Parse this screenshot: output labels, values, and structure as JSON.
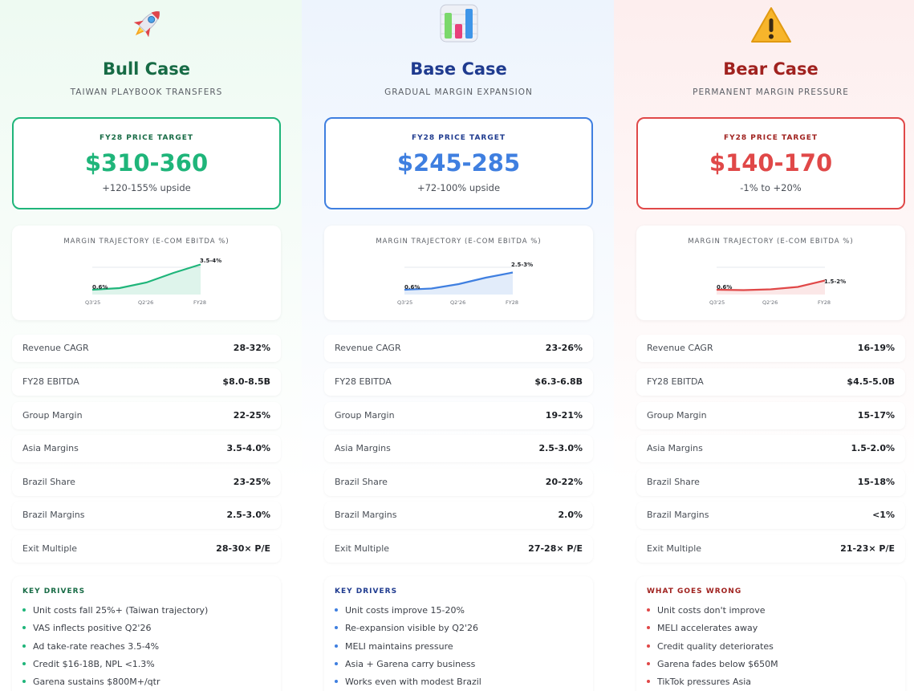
{
  "scenarios": [
    {
      "key": "bull",
      "icon": "rocket-icon",
      "title": "Bull Case",
      "subtitle": "TAIWAN PLAYBOOK TRANSFERS",
      "price_target_label": "FY28 PRICE TARGET",
      "price_target": "$310-360",
      "upside": "+120-155% upside",
      "chart_title": "MARGIN TRAJECTORY (E-COM EBITDA %)",
      "chart_start_label": "0.6%",
      "chart_end_label": "3.5-4%",
      "chart_x_labels": [
        "Q3'25",
        "Q2'26",
        "FY28"
      ],
      "metrics": [
        {
          "label": "Revenue CAGR",
          "value": "28-32%"
        },
        {
          "label": "FY28 EBITDA",
          "value": "$8.0-8.5B"
        },
        {
          "label": "Group Margin",
          "value": "22-25%"
        },
        {
          "label": "Asia Margins",
          "value": "3.5-4.0%"
        },
        {
          "label": "Brazil Share",
          "value": "23-25%"
        },
        {
          "label": "Brazil Margins",
          "value": "2.5-3.0%"
        },
        {
          "label": "Exit Multiple",
          "value": "28-30× P/E"
        }
      ],
      "drivers_title": "KEY DRIVERS",
      "drivers": [
        "Unit costs fall 25%+ (Taiwan trajectory)",
        "VAS inflects positive Q2'26",
        "Ad take-rate reaches 3.5-4%",
        "Credit $16-18B, NPL <1.3%",
        "Garena sustains $800M+/qtr"
      ]
    },
    {
      "key": "base",
      "icon": "bar-chart-icon",
      "title": "Base Case",
      "subtitle": "GRADUAL MARGIN EXPANSION",
      "price_target_label": "FY28 PRICE TARGET",
      "price_target": "$245-285",
      "upside": "+72-100% upside",
      "chart_title": "MARGIN TRAJECTORY (E-COM EBITDA %)",
      "chart_start_label": "0.6%",
      "chart_end_label": "2.5-3%",
      "chart_x_labels": [
        "Q3'25",
        "Q2'26",
        "FY28"
      ],
      "metrics": [
        {
          "label": "Revenue CAGR",
          "value": "23-26%"
        },
        {
          "label": "FY28 EBITDA",
          "value": "$6.3-6.8B"
        },
        {
          "label": "Group Margin",
          "value": "19-21%"
        },
        {
          "label": "Asia Margins",
          "value": "2.5-3.0%"
        },
        {
          "label": "Brazil Share",
          "value": "20-22%"
        },
        {
          "label": "Brazil Margins",
          "value": "2.0%"
        },
        {
          "label": "Exit Multiple",
          "value": "27-28× P/E"
        }
      ],
      "drivers_title": "KEY DRIVERS",
      "drivers": [
        "Unit costs improve 15-20%",
        "Re-expansion visible by Q2'26",
        "MELI maintains pressure",
        "Asia + Garena carry business",
        "Works even with modest Brazil"
      ]
    },
    {
      "key": "bear",
      "icon": "warning-icon",
      "title": "Bear Case",
      "subtitle": "PERMANENT MARGIN PRESSURE",
      "price_target_label": "FY28 PRICE TARGET",
      "price_target": "$140-170",
      "upside": "-1% to +20%",
      "chart_title": "MARGIN TRAJECTORY (E-COM EBITDA %)",
      "chart_start_label": "0.6%",
      "chart_end_label": "1.5-2%",
      "chart_x_labels": [
        "Q3'25",
        "Q2'26",
        "FY28"
      ],
      "metrics": [
        {
          "label": "Revenue CAGR",
          "value": "16-19%"
        },
        {
          "label": "FY28 EBITDA",
          "value": "$4.5-5.0B"
        },
        {
          "label": "Group Margin",
          "value": "15-17%"
        },
        {
          "label": "Asia Margins",
          "value": "1.5-2.0%"
        },
        {
          "label": "Brazil Share",
          "value": "15-18%"
        },
        {
          "label": "Brazil Margins",
          "value": "<1%"
        },
        {
          "label": "Exit Multiple",
          "value": "21-23× P/E"
        }
      ],
      "drivers_title": "WHAT GOES WRONG",
      "drivers": [
        "Unit costs don't improve",
        "MELI accelerates away",
        "Credit quality deteriorates",
        "Garena fades below $650M",
        "TikTok pressures Asia"
      ]
    }
  ],
  "chart_data": [
    {
      "type": "area",
      "x": [
        "Q3'25",
        "",
        "Q2'26",
        "",
        "FY28"
      ],
      "values": [
        0.6,
        0.8,
        1.5,
        2.7,
        3.75
      ],
      "ylim": [
        0,
        4
      ],
      "color": "#1fb57a"
    },
    {
      "type": "area",
      "x": [
        "Q3'25",
        "",
        "Q2'26",
        "",
        "FY28"
      ],
      "values": [
        0.6,
        0.75,
        1.3,
        2.1,
        2.75
      ],
      "ylim": [
        0,
        4
      ],
      "color": "#3f7fe0"
    },
    {
      "type": "area",
      "x": [
        "Q3'25",
        "",
        "Q2'26",
        "",
        "FY28"
      ],
      "values": [
        0.6,
        0.55,
        0.65,
        0.95,
        1.75
      ],
      "ylim": [
        0,
        4
      ],
      "color": "#e04848"
    }
  ],
  "colors": {
    "bull": "#1fb57a",
    "bull_dark": "#176b45",
    "base": "#3f7fe0",
    "base_dark": "#1f3b8f",
    "bear": "#e04848",
    "bear_dark": "#a0221f"
  }
}
